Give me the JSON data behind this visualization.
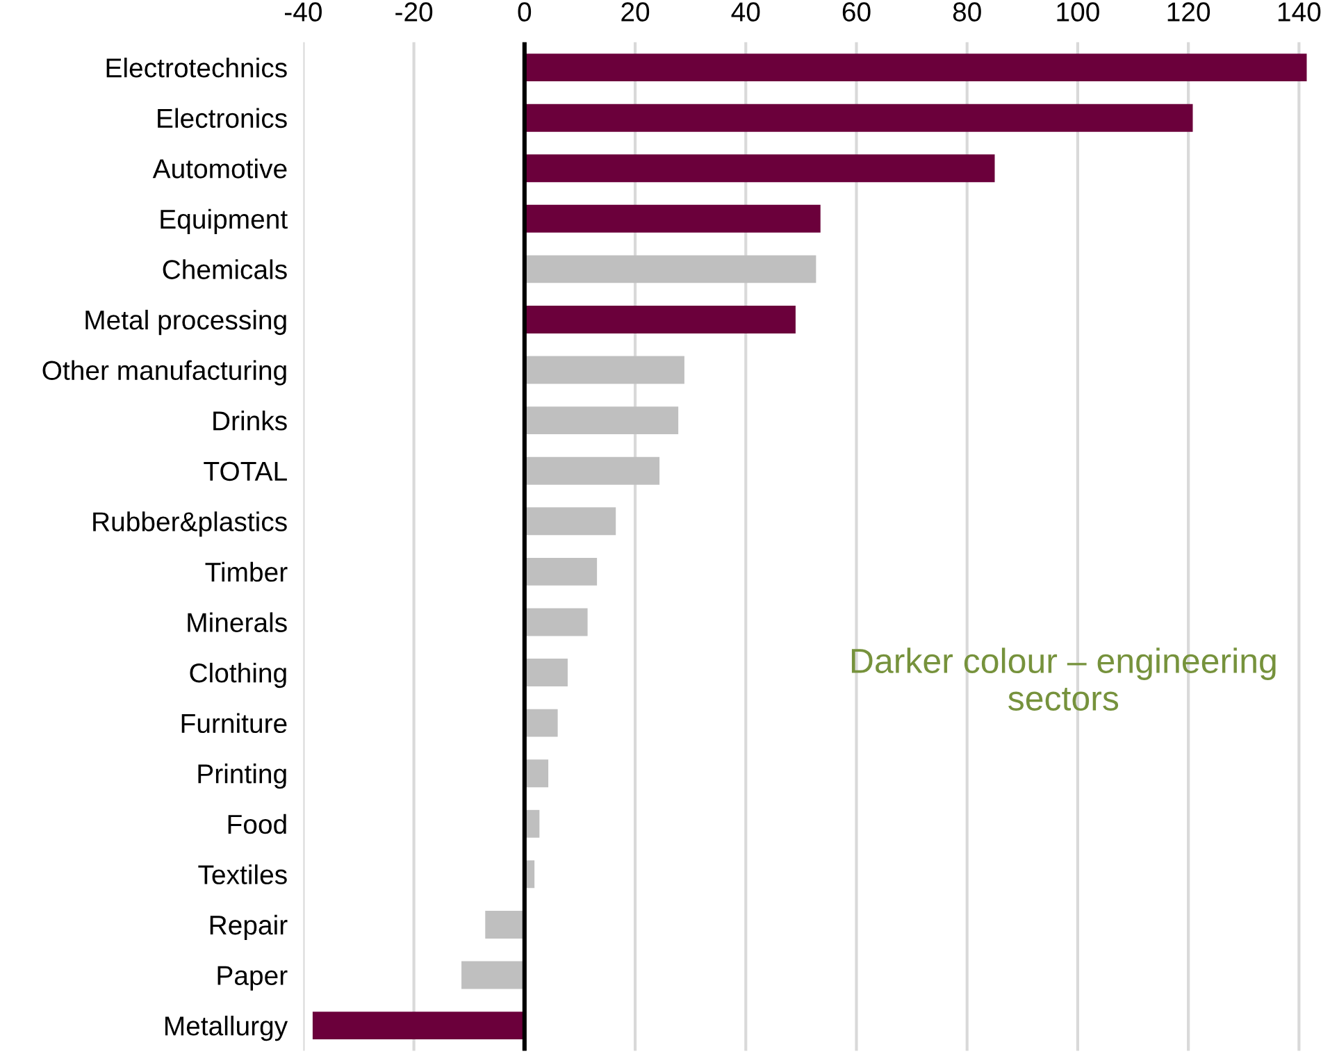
{
  "chart_data": {
    "type": "bar",
    "orientation": "horizontal",
    "categories": [
      "Electrotechnics",
      "Electronics",
      "Automotive",
      "Equipment",
      "Chemicals",
      "Metal processing",
      "Other manufacturing",
      "Drinks",
      "TOTAL",
      "Rubber&plastics",
      "Timber",
      "Minerals",
      "Clothing",
      "Furniture",
      "Printing",
      "Food",
      "Textiles",
      "Repair",
      "Paper",
      "Metallurgy"
    ],
    "values": [
      141.4,
      120.8,
      85,
      53.5,
      52.7,
      49,
      28.9,
      27.8,
      24.4,
      16.5,
      13.1,
      11.4,
      7.8,
      6,
      4.3,
      2.7,
      1.8,
      -7.1,
      -11.4,
      -38.3
    ],
    "colors": [
      "#6b003b",
      "#6b003b",
      "#6b003b",
      "#6b003b",
      "#bfbfbf",
      "#6b003b",
      "#bfbfbf",
      "#bfbfbf",
      "#bfbfbf",
      "#bfbfbf",
      "#bfbfbf",
      "#bfbfbf",
      "#bfbfbf",
      "#bfbfbf",
      "#bfbfbf",
      "#bfbfbf",
      "#bfbfbf",
      "#bfbfbf",
      "#bfbfbf",
      "#6b003b"
    ],
    "xlim": [
      -40,
      142
    ],
    "xticks": [
      -40,
      -20,
      0,
      20,
      40,
      60,
      80,
      100,
      120,
      140
    ],
    "grid": "x",
    "legend": false,
    "ref_lines": [
      {
        "axis": "x",
        "value": 0,
        "color": "#000000"
      }
    ],
    "annotations": [
      "Darker colour – engineering\nsectors"
    ]
  }
}
